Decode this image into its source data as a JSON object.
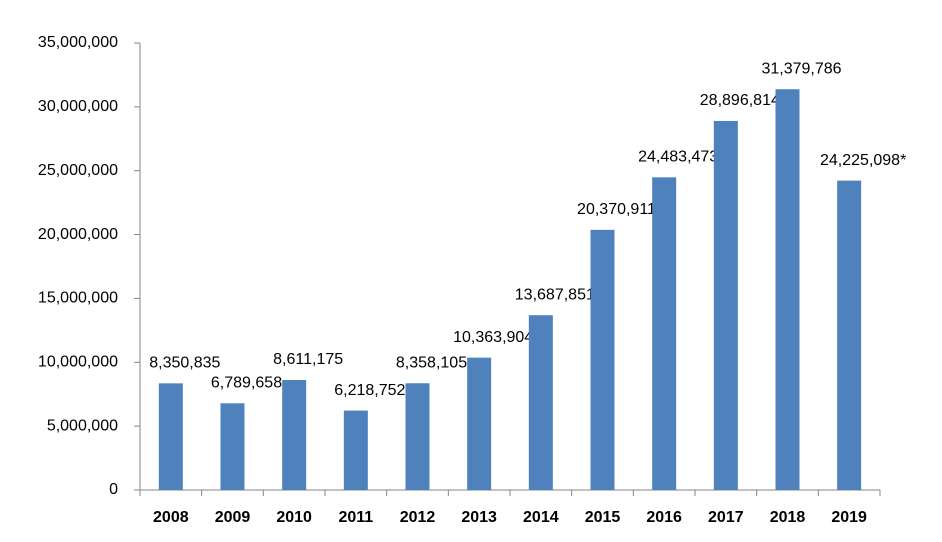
{
  "chart_data": {
    "type": "bar",
    "categories": [
      "2008",
      "2009",
      "2010",
      "2011",
      "2012",
      "2013",
      "2014",
      "2015",
      "2016",
      "2017",
      "2018",
      "2019"
    ],
    "values": [
      8350835,
      6789658,
      8611175,
      6218752,
      8358105,
      10363904,
      13687851,
      20370911,
      24483473,
      28896814,
      31379786,
      24225098
    ],
    "value_labels": [
      "8,350,835",
      "6,789,658",
      "8,611,175",
      "6,218,752",
      "8,358,105",
      "10,363,904",
      "13,687,851",
      "20,370,911",
      "24,483,473",
      "28,896,814",
      "31,379,786",
      "24,225,098*"
    ],
    "color": "#4f81bd",
    "ylim": [
      0,
      35000000
    ],
    "yticks": [
      0,
      {
        "value": 5000000,
        "label": "5,000,000"
      },
      {
        "value": 10000000,
        "label": "10,000,000"
      },
      {
        "value": 15000000,
        "label": "15,000,000"
      },
      {
        "value": 20000000,
        "label": "20,000,000"
      },
      {
        "value": 25000000,
        "label": "25,000,000"
      },
      {
        "value": 30000000,
        "label": "30,000,000"
      },
      {
        "value": 35000000,
        "label": "35,000,000"
      }
    ],
    "grid": false
  }
}
